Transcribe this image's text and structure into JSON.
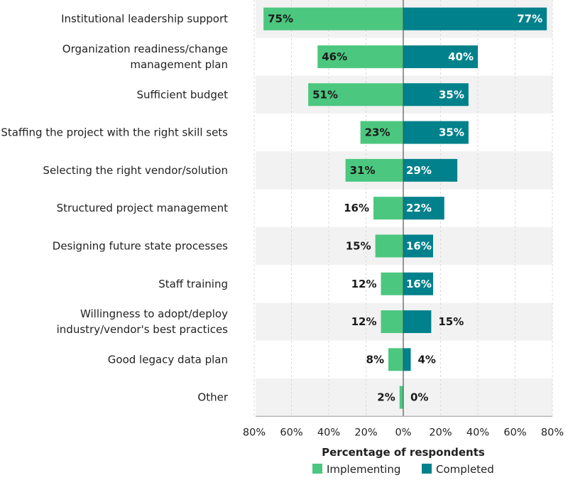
{
  "chart_data": {
    "type": "bar",
    "orientation": "horizontal-diverging",
    "categories": [
      [
        "Institutional leadership support"
      ],
      [
        "Organization readiness/change",
        "management plan"
      ],
      [
        "Sufficient budget"
      ],
      [
        "Staffing the project with the right skill sets"
      ],
      [
        "Selecting the right vendor/solution"
      ],
      [
        "Structured project management"
      ],
      [
        "Designing future state processes"
      ],
      [
        "Staff training"
      ],
      [
        "Willingness to adopt/deploy",
        "industry/vendor's best practices"
      ],
      [
        "Good legacy data plan"
      ],
      [
        "Other"
      ]
    ],
    "series": [
      {
        "name": "Implementing",
        "color": "#4cc77f",
        "direction": "left",
        "values": [
          75,
          46,
          51,
          23,
          31,
          16,
          15,
          12,
          12,
          8,
          2
        ]
      },
      {
        "name": "Completed",
        "color": "#00818b",
        "direction": "right",
        "values": [
          77,
          40,
          35,
          35,
          29,
          22,
          16,
          16,
          15,
          4,
          0
        ]
      }
    ],
    "value_labels": {
      "Implementing": [
        "75%",
        "46%",
        "51%",
        "23%",
        "31%",
        "16%",
        "15%",
        "12%",
        "12%",
        "8%",
        "2%"
      ],
      "Completed": [
        "77%",
        "40%",
        "35%",
        "35%",
        "29%",
        "22%",
        "16%",
        "16%",
        "15%",
        "4%",
        "0%"
      ]
    },
    "xlim": [
      -80,
      80
    ],
    "xticks": [
      -80,
      -60,
      -40,
      -20,
      0,
      20,
      40,
      60,
      80
    ],
    "xtick_labels": [
      "80%",
      "60%",
      "40%",
      "20%",
      "0%",
      "20%",
      "40%",
      "60%",
      "80%"
    ],
    "xlabel": "Percentage of respondents",
    "legend_position": "bottom",
    "grid": true,
    "row_band_color": "#f2f2f2"
  }
}
